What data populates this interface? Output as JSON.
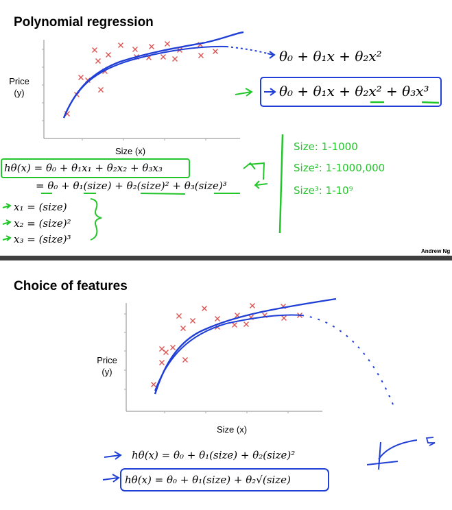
{
  "slide1": {
    "title": "Polynomial regression",
    "ylabel_line1": "Price",
    "ylabel_line2": "(y)",
    "xlabel": "Size (x)",
    "quadratic_model": "θ₀ + θ₁x + θ₂x²",
    "cubic_model": "θ₀ + θ₁x + θ₂x² + θ₃x³",
    "hypothesis": "hθ(x) = θ₀ + θ₁x₁ + θ₂x₂ + θ₃x₃",
    "hypothesis_expanded": "= θ₀ + θ₁(size) + θ₂(size)² + θ₃(size)³",
    "feature_x1": "x₁ = (size)",
    "feature_x2": "x₂ = (size)²",
    "feature_x3": "x₃ = (size)³",
    "range_size": "Size: 1-1000",
    "range_size2": "Size²: 1-1000,000",
    "range_size3": "Size³: 1-10⁹",
    "credit": "Andrew Ng",
    "marker_color": "#d9534f",
    "curve_color": "#1f3fd6",
    "annotation_color": "#22c52a"
  },
  "slide2": {
    "title": "Choice of features",
    "ylabel_line1": "Price",
    "ylabel_line2": "(y)",
    "xlabel": "Size (x)",
    "hypothesis_quadratic": "hθ(x) = θ₀ + θ₁(size) + θ₂(size)²",
    "hypothesis_sqrt": "hθ(x) = θ₀ + θ₁(size) + θ₂√(size)"
  }
}
